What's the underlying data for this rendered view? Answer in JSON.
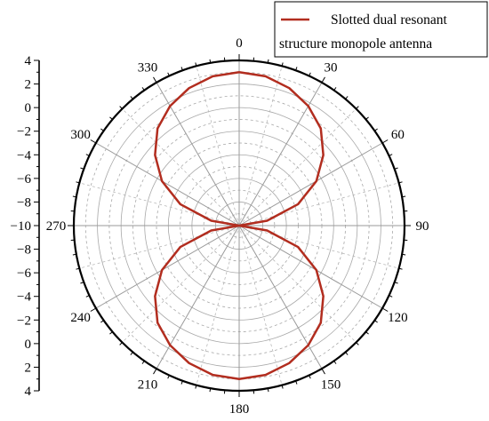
{
  "chart_data": {
    "type": "line",
    "subtype": "polar",
    "title": "",
    "series": [
      {
        "name": "Slotted dual resonant structure monopole antenna",
        "legend_lines": [
          "Slotted dual resonant",
          "structure monopole antenna"
        ],
        "color": "#b22d1f",
        "theta_deg": [
          0,
          10,
          20,
          30,
          40,
          50,
          60,
          70,
          80,
          90,
          100,
          110,
          120,
          130,
          140,
          150,
          160,
          170,
          180,
          190,
          200,
          210,
          220,
          230,
          240,
          250,
          260,
          270,
          280,
          290,
          300,
          310,
          320,
          330,
          340,
          350,
          360
        ],
        "r_dB": [
          3.0,
          2.85,
          2.4,
          1.7,
          0.75,
          -0.7,
          -2.45,
          -4.7,
          -7.6,
          -10.0,
          -7.6,
          -4.7,
          -2.45,
          -0.7,
          0.75,
          1.7,
          2.4,
          2.85,
          3.0,
          2.85,
          2.4,
          1.7,
          0.75,
          -0.7,
          -2.45,
          -4.7,
          -7.6,
          -10.0,
          -7.6,
          -4.7,
          -2.45,
          -0.7,
          0.75,
          1.7,
          2.4,
          2.85,
          3.0
        ]
      }
    ],
    "radial_axis": {
      "range": [
        -10,
        4
      ],
      "ticks": [
        -10,
        -8,
        -6,
        -4,
        -2,
        0,
        2,
        4
      ],
      "tick_labels_upper": [
        "4",
        "2",
        "0",
        "−2",
        "−4",
        "−6",
        "−8",
        "−10"
      ],
      "tick_labels_lower": [
        "−8",
        "−6",
        "−4",
        "−2",
        "0",
        "2",
        "4"
      ]
    },
    "angular_axis": {
      "direction": "clockwise",
      "zero_location": "top",
      "major_labels": [
        "0",
        "30",
        "60",
        "90",
        "120",
        "150",
        "180",
        "210",
        "240",
        "270",
        "300",
        "330"
      ],
      "minor_step_deg": 15
    },
    "grid": true,
    "legend_position": "top-right"
  }
}
